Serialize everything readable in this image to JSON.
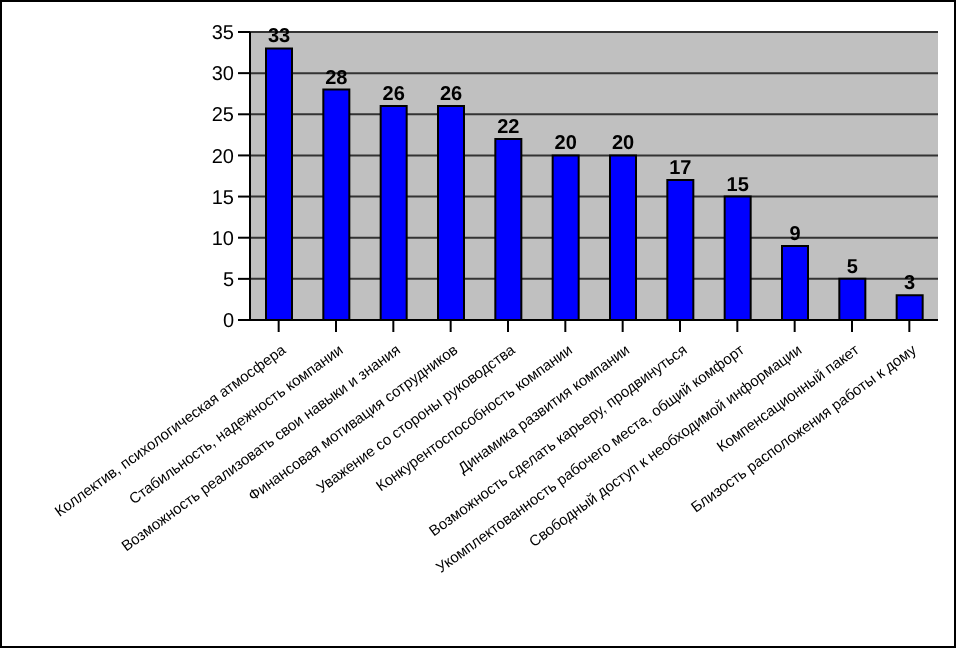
{
  "chart_data": {
    "type": "bar",
    "categories": [
      "Коллектив, психологическая атмосфера",
      "Стабильность, надежность компании",
      "Возможность реализовать свои навыки и знания",
      "Финансовая мотивация сотрудников",
      "Уважение со стороны руководства",
      "Конкурентоспособность компании",
      "Динамика развития компании",
      "Возможность сделать карьеру, продвинуться",
      "Укомплектованность рабочего места, общий комфорт",
      "Свободный доступ к необходимой информации",
      "Компенсационный пакет",
      "Близость расположения работы к дому"
    ],
    "values": [
      33,
      28,
      26,
      26,
      22,
      20,
      20,
      17,
      15,
      9,
      5,
      3
    ],
    "color": "#0000ff",
    "ylim": [
      0,
      35
    ],
    "yticks": [
      0,
      5,
      10,
      15,
      20,
      25,
      30,
      35
    ],
    "grid": "y",
    "data_labels": true
  }
}
